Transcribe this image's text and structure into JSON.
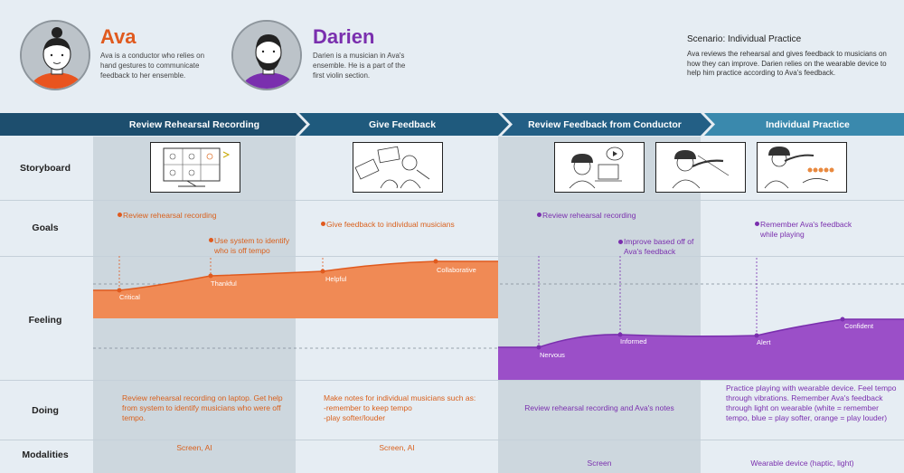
{
  "personas": [
    {
      "name": "Ava",
      "description": "Ava is a conductor who relies on hand gestures to communicate feedback to her ensemble.",
      "color": "#e05a1e"
    },
    {
      "name": "Darien",
      "description": "Darien is a musician in Ava's ensemble. He is a part of the first violin section.",
      "color": "#7a2fae"
    }
  ],
  "scenario": {
    "title": "Scenario: Individual Practice",
    "description": "Ava reviews the rehearsal and gives feedback to musicians on how they can improve. Darien relies on the wearable device to help him practice according to Ava's feedback."
  },
  "phases": [
    {
      "label": "Review Rehearsal Recording",
      "color": "#1d4e6e"
    },
    {
      "label": "Give Feedback",
      "color": "#1f5a7d"
    },
    {
      "label": "Review Feedback from Conductor",
      "color": "#235f85"
    },
    {
      "label": "Individual Practice",
      "color": "#3a89ad"
    }
  ],
  "rows": {
    "storyboard": "Storyboard",
    "goals": "Goals",
    "feeling": "Feeling",
    "doing": "Doing",
    "modalities": "Modalities"
  },
  "goals": [
    {
      "text": "Review rehearsal recording",
      "persona": "Ava"
    },
    {
      "text": "Use system to identify who is off tempo",
      "persona": "Ava"
    },
    {
      "text": "Give feedback to individual musicians",
      "persona": "Ava"
    },
    {
      "text": "Review rehearsal recording",
      "persona": "Darien"
    },
    {
      "text": "Improve based off of Ava's feedback",
      "persona": "Darien"
    },
    {
      "text": "Remember Ava's feedback while playing",
      "persona": "Darien"
    }
  ],
  "feelings": {
    "ava": [
      {
        "label": "Critical"
      },
      {
        "label": "Thankful"
      },
      {
        "label": "Helpful"
      },
      {
        "label": "Collaborative"
      }
    ],
    "darien": [
      {
        "label": "Nervous"
      },
      {
        "label": "Informed"
      },
      {
        "label": "Alert"
      },
      {
        "label": "Confident"
      }
    ]
  },
  "doing": [
    "Review rehearsal recording on laptop. Get help from system to identify musicians who were off tempo.",
    "Make notes for individual musicians such as:\n-remember to keep tempo\n-play softer/louder",
    "Review rehearsal recording and Ava's notes",
    "Practice playing with wearable device. Feel tempo through vibrations. Remember Ava's feedback through light on wearable (white = remember tempo, blue = play softer, orange = play louder)"
  ],
  "modalities": [
    "Screen, AI",
    "Screen, AI",
    "Screen",
    "Wearable device (haptic, light)"
  ],
  "colors": {
    "ava_fill": "#f08a55",
    "ava_line": "#e05a1e",
    "darien_fill": "#9b4fc8",
    "darien_line": "#7a2fae"
  }
}
